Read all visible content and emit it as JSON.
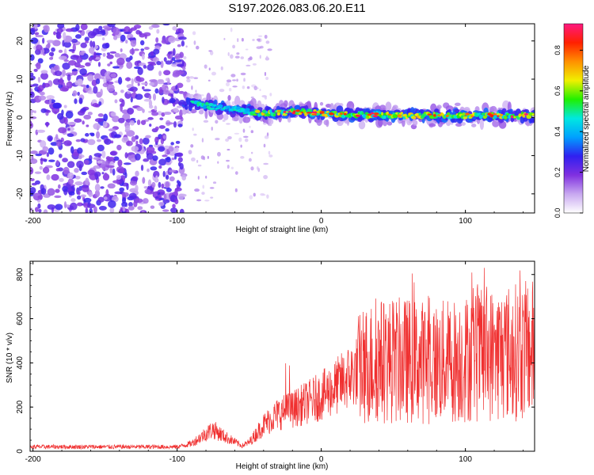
{
  "title": "S197.2026.083.06.20.E11",
  "chart_data": [
    {
      "type": "heatmap",
      "name": "spectrogram",
      "xlabel": "Height of straight line (km)",
      "ylabel": "Frequency (Hz)",
      "xlim": [
        -202,
        148
      ],
      "ylim": [
        -25,
        24.5
      ],
      "xticks": [
        -200,
        -100,
        0,
        100
      ],
      "xtick_labels": [
        "-200",
        "-100",
        "0",
        "100"
      ],
      "yticks": [
        -20,
        -10,
        0,
        10,
        20
      ],
      "ytick_labels": [
        "-20",
        "-10",
        "0",
        "10",
        "20"
      ],
      "colorbar": {
        "label": "Normalized spectral amplitude",
        "range": [
          0,
          0.93
        ],
        "ticks": [
          0,
          0.2,
          0.4,
          0.6,
          0.8
        ],
        "tick_labels": [
          "0.0",
          "0.2",
          "0.4",
          "0.6",
          "0.8"
        ],
        "colors": [
          "#ffffff",
          "#c8a8f0",
          "#8030e0",
          "#3020f0",
          "#00a0ff",
          "#00e8e0",
          "#20f000",
          "#f0f000",
          "#ff9000",
          "#ff2000",
          "#ff1880"
        ]
      },
      "description_points": {
        "noise_region_x": [
          -202,
          -95
        ],
        "band_start_x": -95,
        "band_center_hz": [
          [
            -95,
            4
          ],
          [
            -80,
            3
          ],
          [
            -60,
            2
          ],
          [
            -40,
            1
          ],
          [
            -20,
            1.5
          ],
          [
            0,
            1
          ],
          [
            20,
            0.8
          ],
          [
            60,
            0.5
          ],
          [
            100,
            0.5
          ],
          [
            148,
            0.5
          ]
        ]
      }
    },
    {
      "type": "line",
      "name": "snr",
      "xlabel": "Height of straight line (km)",
      "ylabel": "SNR (10 * v/v)",
      "xlim": [
        -202,
        148
      ],
      "ylim": [
        0,
        860
      ],
      "xticks": [
        -200,
        -100,
        0,
        100
      ],
      "xtick_labels": [
        "-200",
        "-100",
        "0",
        "100"
      ],
      "yticks": [
        0,
        200,
        400,
        600,
        800
      ],
      "ytick_labels": [
        "0",
        "200",
        "400",
        "600",
        "800"
      ],
      "color": "#f03030",
      "envelope": [
        [
          -202,
          20
        ],
        [
          -100,
          20
        ],
        [
          -90,
          35
        ],
        [
          -80,
          80
        ],
        [
          -75,
          100
        ],
        [
          -68,
          70
        ],
        [
          -55,
          25
        ],
        [
          -50,
          40
        ],
        [
          -40,
          120
        ],
        [
          -30,
          170
        ],
        [
          -20,
          190
        ],
        [
          -10,
          220
        ],
        [
          0,
          250
        ],
        [
          10,
          290
        ],
        [
          20,
          340
        ],
        [
          30,
          390
        ],
        [
          40,
          410
        ],
        [
          60,
          410
        ],
        [
          80,
          400
        ],
        [
          100,
          420
        ],
        [
          120,
          440
        ],
        [
          148,
          460
        ]
      ]
    }
  ]
}
